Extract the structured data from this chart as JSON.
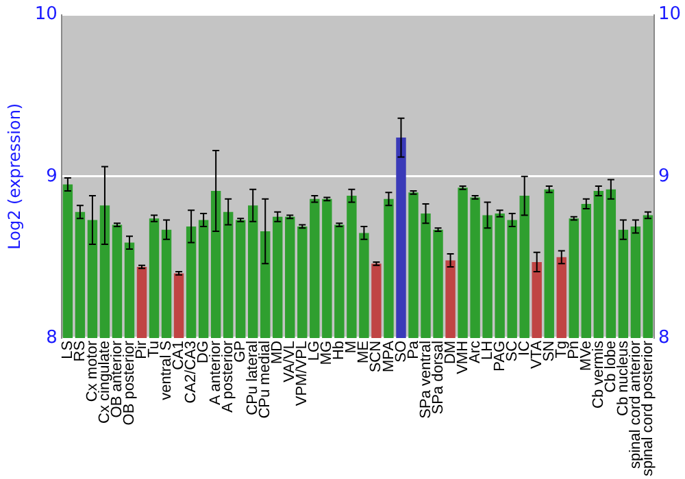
{
  "chart_data": {
    "type": "bar",
    "ylabel": "Log2 (expression)",
    "categories": [
      "LS",
      "RS",
      "Cx motor",
      "Cx cingulate",
      "OB anterior",
      "OB posterior",
      "Pir",
      "Tu",
      "ventral S",
      "CA1",
      "CA2/CA3",
      "DG",
      "A anterior",
      "A posterior",
      "GP",
      "CPu lateral",
      "CPu medial",
      "MD",
      "VA/VL",
      "VPM/VPL",
      "LG",
      "MG",
      "Hb",
      "M",
      "ME",
      "SCN",
      "MPA",
      "SO",
      "Pa",
      "SPa ventral",
      "SPa dorsal",
      "DM",
      "VMH",
      "Arc",
      "LH",
      "PAG",
      "SC",
      "IC",
      "VTA",
      "SN",
      "Tg",
      "Pn",
      "MVe",
      "Cb vermis",
      "Cb lobe",
      "Cb nucleus",
      "spinal cord anterior",
      "spinal cord posterior"
    ],
    "values": [
      8.95,
      8.78,
      8.73,
      8.82,
      8.7,
      8.59,
      8.44,
      8.74,
      8.67,
      8.4,
      8.69,
      8.73,
      8.91,
      8.78,
      8.73,
      8.82,
      8.66,
      8.75,
      8.75,
      8.69,
      8.86,
      8.86,
      8.7,
      8.88,
      8.65,
      8.46,
      8.86,
      9.24,
      8.9,
      8.77,
      8.67,
      8.48,
      8.93,
      8.87,
      8.76,
      8.77,
      8.73,
      8.88,
      8.47,
      8.92,
      8.5,
      8.74,
      8.83,
      8.91,
      8.92,
      8.67,
      8.69,
      8.76
    ],
    "errors": [
      0.04,
      0.04,
      0.15,
      0.24,
      0.01,
      0.04,
      0.01,
      0.02,
      0.06,
      0.01,
      0.1,
      0.04,
      0.25,
      0.08,
      0.01,
      0.1,
      0.2,
      0.03,
      0.01,
      0.01,
      0.02,
      0.01,
      0.01,
      0.04,
      0.04,
      0.01,
      0.04,
      0.12,
      0.01,
      0.06,
      0.01,
      0.04,
      0.01,
      0.01,
      0.08,
      0.02,
      0.04,
      0.12,
      0.06,
      0.02,
      0.04,
      0.01,
      0.03,
      0.03,
      0.06,
      0.06,
      0.04,
      0.02
    ],
    "colors": [
      "#2f9f2f",
      "#2f9f2f",
      "#2f9f2f",
      "#2f9f2f",
      "#2f9f2f",
      "#2f9f2f",
      "#c04444",
      "#2f9f2f",
      "#2f9f2f",
      "#c04444",
      "#2f9f2f",
      "#2f9f2f",
      "#2f9f2f",
      "#2f9f2f",
      "#2f9f2f",
      "#2f9f2f",
      "#2f9f2f",
      "#2f9f2f",
      "#2f9f2f",
      "#2f9f2f",
      "#2f9f2f",
      "#2f9f2f",
      "#2f9f2f",
      "#2f9f2f",
      "#2f9f2f",
      "#c04444",
      "#2f9f2f",
      "#3a3ab8",
      "#2f9f2f",
      "#2f9f2f",
      "#2f9f2f",
      "#c04444",
      "#2f9f2f",
      "#2f9f2f",
      "#2f9f2f",
      "#2f9f2f",
      "#2f9f2f",
      "#2f9f2f",
      "#c04444",
      "#2f9f2f",
      "#c04444",
      "#2f9f2f",
      "#2f9f2f",
      "#2f9f2f",
      "#2f9f2f",
      "#2f9f2f",
      "#2f9f2f",
      "#2f9f2f"
    ],
    "ylim": [
      8,
      10
    ],
    "yticks": [
      8,
      9,
      10
    ],
    "y2lim": [
      8,
      10
    ],
    "y2ticks": [
      8,
      9,
      10
    ],
    "grid": "y",
    "legend": false
  }
}
